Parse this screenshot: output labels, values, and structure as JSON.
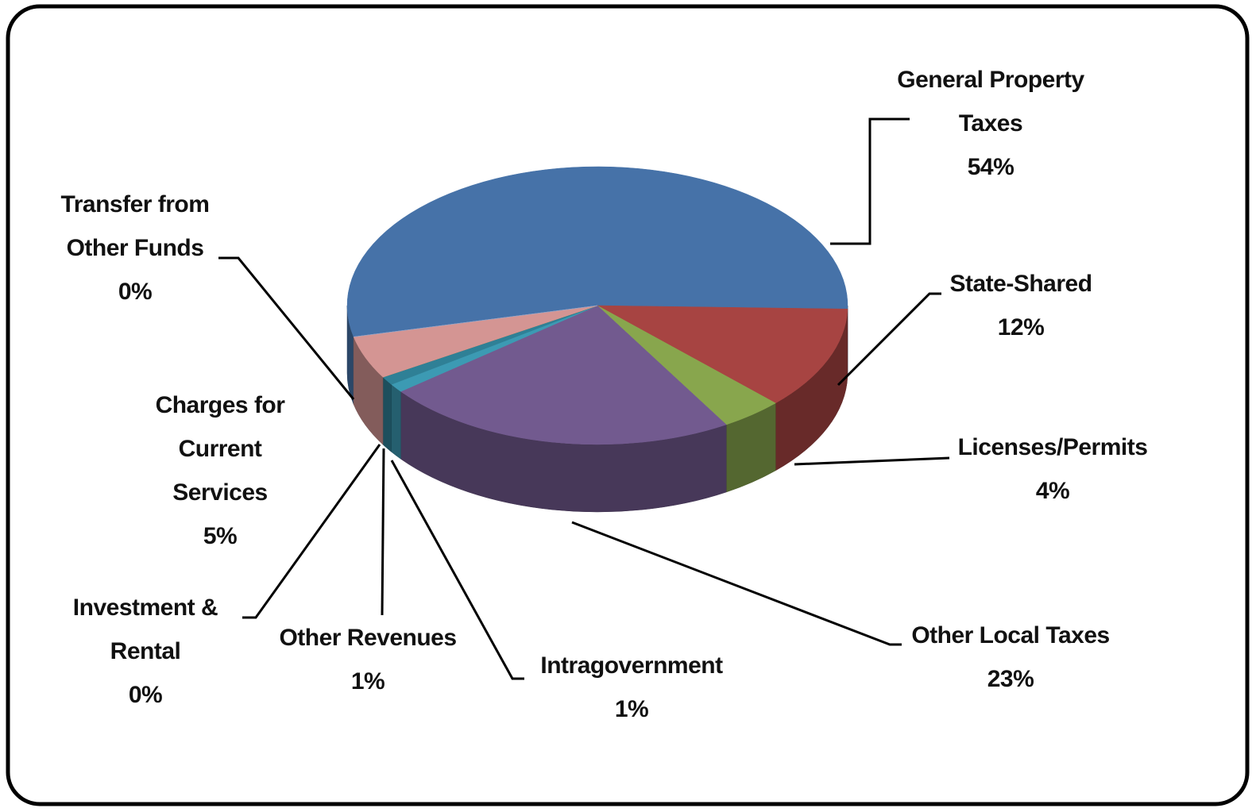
{
  "chart_data": {
    "type": "pie",
    "categories": [
      "General Property Taxes",
      "State-Shared",
      "Licenses/Permits",
      "Other Local Taxes",
      "Intragovernment",
      "Other Revenues",
      "Investment & Rental",
      "Charges for Current Services",
      "Transfer from Other Funds"
    ],
    "values": [
      54,
      12,
      4,
      23,
      1,
      1,
      0,
      5,
      0
    ],
    "value_labels": [
      "54%",
      "12%",
      "4%",
      "23%",
      "1%",
      "1%",
      "0%",
      "5%",
      "0%"
    ],
    "colors": [
      "#4672a8",
      "#a74442",
      "#88a64d",
      "#725a8f",
      "#3c9ab3",
      "#2f8096",
      "#e3892f",
      "#d49593",
      "#8fa8cf"
    ]
  }
}
